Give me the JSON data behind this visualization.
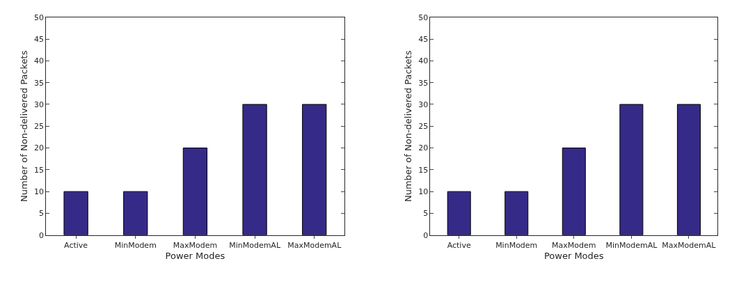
{
  "chart_data": [
    {
      "type": "bar",
      "xlabel": "Power Modes",
      "ylabel": "Number of Non-delivered Packets",
      "categories": [
        "Active",
        "MinModem",
        "MaxModem",
        "MinModemAL",
        "MaxModemAL"
      ],
      "values": [
        10,
        10,
        20,
        30,
        30
      ],
      "color": "#352a87",
      "ylim": [
        0,
        50
      ],
      "yticks": [
        0,
        5,
        10,
        15,
        20,
        25,
        30,
        35,
        40,
        45,
        50
      ]
    },
    {
      "type": "bar",
      "xlabel": "Power Modes",
      "ylabel": "Number of Non-delivered Packets",
      "categories": [
        "Active",
        "MinModem",
        "MaxModem",
        "MinModemAL",
        "MaxModemAL"
      ],
      "values": [
        10,
        10,
        20,
        30,
        30
      ],
      "color": "#352a87",
      "ylim": [
        0,
        50
      ],
      "yticks": [
        0,
        5,
        10,
        15,
        20,
        25,
        30,
        35,
        40,
        45,
        50
      ]
    }
  ]
}
